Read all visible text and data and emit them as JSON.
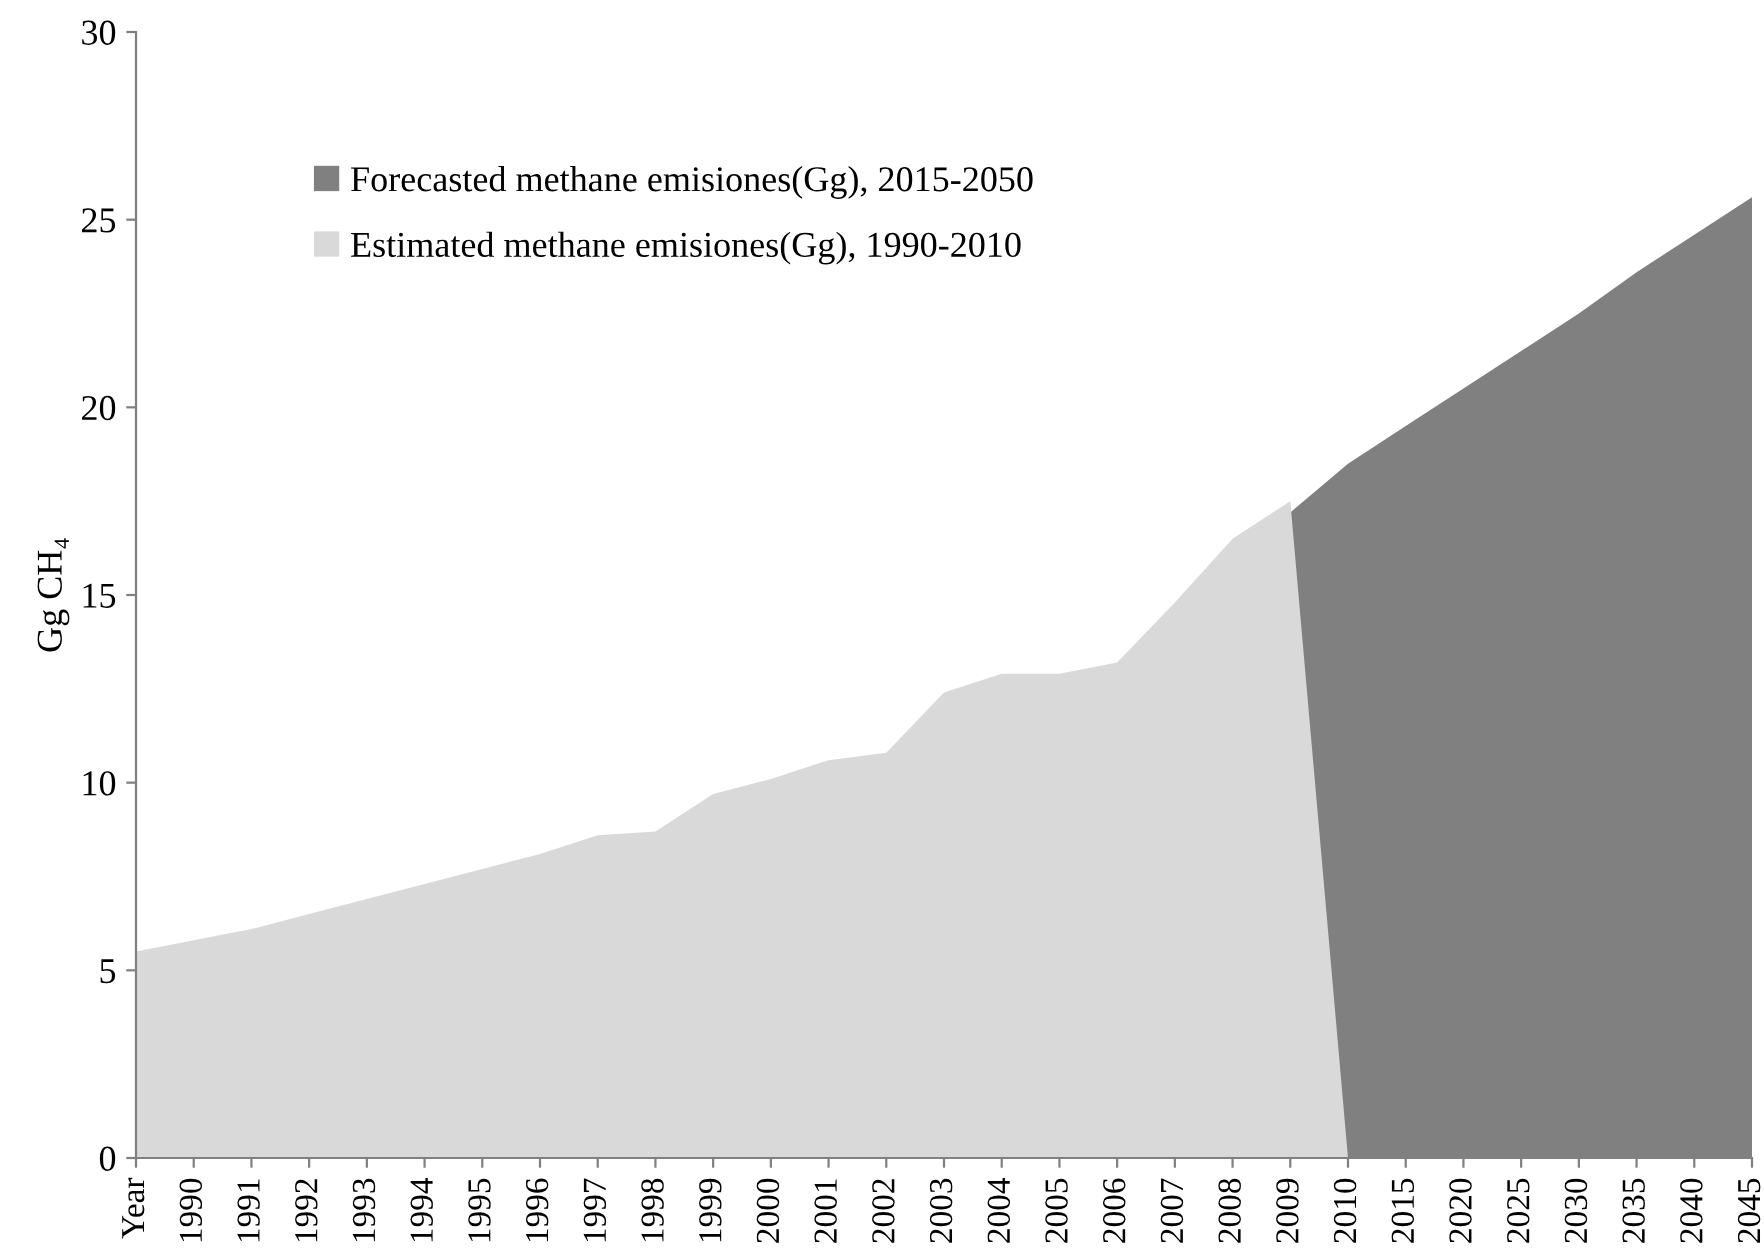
{
  "chart_data": {
    "type": "area",
    "ylabel": "Gg CH₄",
    "categories": [
      "Year",
      "1990",
      "1991",
      "1992",
      "1993",
      "1994",
      "1995",
      "1996",
      "1997",
      "1998",
      "1999",
      "2000",
      "2001",
      "2002",
      "2003",
      "2004",
      "2005",
      "2006",
      "2007",
      "2008",
      "2009",
      "2010",
      "2015",
      "2020",
      "2025",
      "2030",
      "2035",
      "2040",
      "2045"
    ],
    "series": [
      {
        "name": "Forecasted methane emisiones(Gg), 2015-2050",
        "color": "#808080",
        "values": [
          0,
          0,
          0,
          0,
          0,
          0,
          0,
          0,
          0,
          0,
          0,
          0,
          0,
          0,
          0,
          0,
          0,
          0,
          0,
          0,
          17.2,
          18.5,
          19.5,
          20.5,
          21.5,
          22.5,
          23.6,
          24.6,
          25.6
        ]
      },
      {
        "name": "Estimated methane emisiones(Gg), 1990-2010",
        "color": "#d9d9d9",
        "values": [
          5.5,
          5.8,
          6.1,
          6.5,
          6.9,
          7.3,
          7.7,
          8.1,
          8.6,
          8.7,
          9.7,
          10.1,
          10.6,
          10.8,
          12.4,
          12.9,
          12.9,
          13.2,
          14.8,
          16.5,
          17.5,
          0,
          null,
          null,
          null,
          null,
          null,
          null,
          null
        ]
      }
    ],
    "ylim": [
      0,
      30
    ],
    "yticks": [
      0,
      5,
      10,
      15,
      20,
      25,
      30
    ],
    "grid": false,
    "legend": "top left"
  }
}
